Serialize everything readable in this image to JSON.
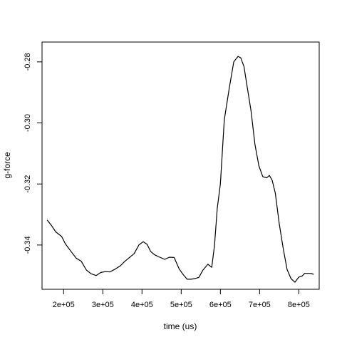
{
  "chart_data": {
    "type": "line",
    "title": "",
    "xlabel": "time (us)",
    "ylabel": "g-force",
    "xlim": [
      145000,
      852000
    ],
    "ylim": [
      -0.3545,
      -0.2735
    ],
    "x_ticks": [
      {
        "value": 200000,
        "label": "2e+05"
      },
      {
        "value": 300000,
        "label": "3e+05"
      },
      {
        "value": 400000,
        "label": "4e+05"
      },
      {
        "value": 500000,
        "label": "5e+05"
      },
      {
        "value": 600000,
        "label": "6e+05"
      },
      {
        "value": 700000,
        "label": "7e+05"
      },
      {
        "value": 800000,
        "label": "8e+05"
      }
    ],
    "y_ticks": [
      {
        "value": -0.34,
        "label": "-0.34"
      },
      {
        "value": -0.32,
        "label": "-0.32"
      },
      {
        "value": -0.3,
        "label": "-0.30"
      },
      {
        "value": -0.28,
        "label": "-0.28"
      }
    ],
    "grid": false,
    "series": [
      {
        "color": "#000000",
        "x": [
          158000,
          170000,
          180000,
          195000,
          205000,
          220000,
          232000,
          245000,
          258000,
          270000,
          283000,
          295000,
          307000,
          318000,
          330000,
          345000,
          355000,
          368000,
          380000,
          392000,
          403000,
          413000,
          422000,
          432000,
          445000,
          458000,
          470000,
          482000,
          495000,
          505000,
          515000,
          525000,
          535000,
          545000,
          555000,
          568000,
          578000,
          585000,
          592000,
          600000,
          610000,
          622000,
          634000,
          645000,
          652000,
          660000,
          668000,
          678000,
          688000,
          698000,
          708000,
          718000,
          725000,
          732000,
          740000,
          750000,
          760000,
          770000,
          780000,
          790000,
          800000,
          808000,
          815000,
          822000,
          830000,
          838000
        ],
        "y": [
          -0.3318,
          -0.3338,
          -0.3357,
          -0.3372,
          -0.3397,
          -0.3423,
          -0.3443,
          -0.3453,
          -0.3482,
          -0.3494,
          -0.35,
          -0.349,
          -0.3487,
          -0.3488,
          -0.348,
          -0.3468,
          -0.3455,
          -0.3441,
          -0.3428,
          -0.34,
          -0.3389,
          -0.3398,
          -0.3421,
          -0.3432,
          -0.344,
          -0.3447,
          -0.344,
          -0.3441,
          -0.3479,
          -0.3497,
          -0.3512,
          -0.3512,
          -0.351,
          -0.3506,
          -0.3483,
          -0.3463,
          -0.3473,
          -0.34,
          -0.328,
          -0.32,
          -0.299,
          -0.289,
          -0.28,
          -0.2782,
          -0.2787,
          -0.2815,
          -0.288,
          -0.296,
          -0.307,
          -0.314,
          -0.3176,
          -0.318,
          -0.3172,
          -0.3188,
          -0.323,
          -0.333,
          -0.341,
          -0.348,
          -0.351,
          -0.3522,
          -0.3505,
          -0.3502,
          -0.3493,
          -0.3493,
          -0.3493,
          -0.3496
        ]
      }
    ]
  }
}
